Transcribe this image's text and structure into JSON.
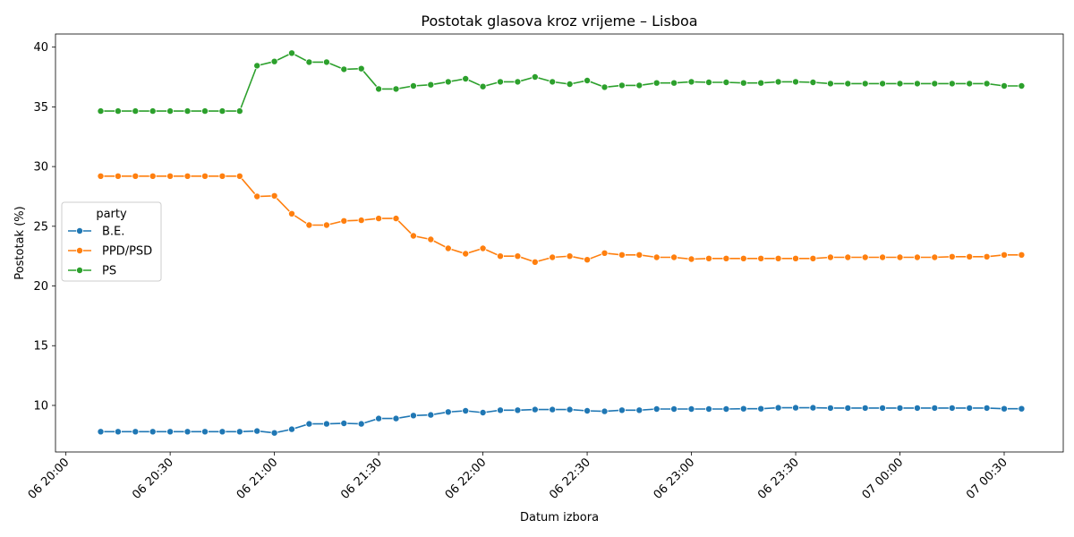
{
  "chart_data": {
    "type": "line",
    "title": "Postotak glasova kroz vrijeme – Lisboa",
    "xlabel": "Datum izbora",
    "ylabel": "Postotak (%)",
    "x_start": "06 20:00",
    "x_end": "07 00:35",
    "xlim": [
      "06 19:57",
      "07 00:47"
    ],
    "ylim": [
      6.1,
      41.1
    ],
    "yticks": [
      10,
      15,
      20,
      25,
      30,
      35,
      40
    ],
    "xticks": [
      "06 20:00",
      "06 20:30",
      "06 21:00",
      "06 21:30",
      "06 22:00",
      "06 22:30",
      "06 23:00",
      "06 23:30",
      "07 00:00",
      "07 00:30"
    ],
    "legend": {
      "title": "party",
      "placement": "center-left"
    },
    "grid": false,
    "markers": "circle",
    "x": [
      "06 20:10",
      "06 20:15",
      "06 20:20",
      "06 20:25",
      "06 20:30",
      "06 20:35",
      "06 20:40",
      "06 20:45",
      "06 20:50",
      "06 20:55",
      "06 21:00",
      "06 21:05",
      "06 21:10",
      "06 21:15",
      "06 21:20",
      "06 21:25",
      "06 21:30",
      "06 21:35",
      "06 21:40",
      "06 21:45",
      "06 21:50",
      "06 21:55",
      "06 22:00",
      "06 22:05",
      "06 22:10",
      "06 22:15",
      "06 22:20",
      "06 22:25",
      "06 22:30",
      "06 22:35",
      "06 22:40",
      "06 22:45",
      "06 22:50",
      "06 22:55",
      "06 23:00",
      "06 23:05",
      "06 23:10",
      "06 23:15",
      "06 23:20",
      "06 23:25",
      "06 23:30",
      "06 23:35",
      "06 23:40",
      "06 23:45",
      "06 23:50",
      "06 23:55",
      "07 00:00",
      "07 00:05",
      "07 00:10",
      "07 00:15",
      "07 00:20",
      "07 00:25",
      "07 00:30",
      "07 00:35"
    ],
    "series": [
      {
        "name": "B.E.",
        "color": "#1f77b4",
        "values": [
          7.8,
          7.8,
          7.8,
          7.8,
          7.8,
          7.8,
          7.8,
          7.8,
          7.8,
          7.85,
          7.7,
          8.0,
          8.45,
          8.45,
          8.5,
          8.45,
          8.9,
          8.9,
          9.15,
          9.2,
          9.45,
          9.55,
          9.4,
          9.6,
          9.6,
          9.65,
          9.65,
          9.65,
          9.55,
          9.5,
          9.6,
          9.6,
          9.7,
          9.7,
          9.7,
          9.7,
          9.7,
          9.72,
          9.72,
          9.8,
          9.8,
          9.8,
          9.78,
          9.78,
          9.78,
          9.78,
          9.78,
          9.78,
          9.78,
          9.78,
          9.78,
          9.78,
          9.72,
          9.72
        ]
      },
      {
        "name": "PPD/PSD",
        "color": "#ff7f0e",
        "values": [
          29.2,
          29.2,
          29.2,
          29.2,
          29.2,
          29.2,
          29.2,
          29.2,
          29.2,
          27.5,
          27.55,
          26.05,
          25.1,
          25.1,
          25.45,
          25.5,
          25.65,
          25.65,
          24.2,
          23.9,
          23.15,
          22.7,
          23.15,
          22.5,
          22.5,
          22.0,
          22.4,
          22.5,
          22.2,
          22.75,
          22.6,
          22.6,
          22.4,
          22.4,
          22.25,
          22.3,
          22.3,
          22.3,
          22.3,
          22.3,
          22.3,
          22.3,
          22.4,
          22.4,
          22.4,
          22.4,
          22.4,
          22.4,
          22.4,
          22.45,
          22.45,
          22.45,
          22.6,
          22.6
        ]
      },
      {
        "name": "PS",
        "color": "#2ca02c",
        "values": [
          34.65,
          34.65,
          34.65,
          34.65,
          34.65,
          34.65,
          34.65,
          34.65,
          34.65,
          38.45,
          38.8,
          39.5,
          38.75,
          38.75,
          38.15,
          38.2,
          36.5,
          36.5,
          36.75,
          36.85,
          37.1,
          37.35,
          36.7,
          37.1,
          37.1,
          37.5,
          37.1,
          36.9,
          37.2,
          36.65,
          36.8,
          36.8,
          37.0,
          37.0,
          37.1,
          37.05,
          37.05,
          37.0,
          37.0,
          37.1,
          37.1,
          37.05,
          36.95,
          36.95,
          36.95,
          36.95,
          36.95,
          36.95,
          36.95,
          36.95,
          36.95,
          36.95,
          36.75,
          36.75
        ]
      }
    ]
  }
}
